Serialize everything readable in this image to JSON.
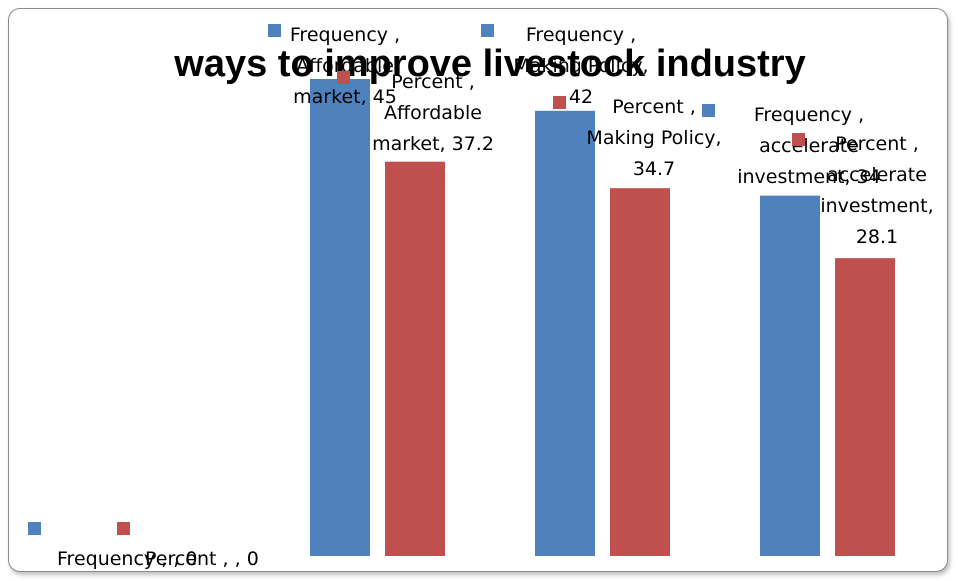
{
  "chart_data": {
    "type": "bar",
    "title": "ways to improve livestock industry",
    "categories": [
      "",
      "Affordable market",
      "Making Policy",
      "accelerate investment"
    ],
    "series": [
      {
        "name": "Frequency",
        "color": "#4f81bd",
        "values": [
          0,
          45,
          42,
          34
        ]
      },
      {
        "name": "Percent",
        "color": "#c0504d",
        "values": [
          0,
          37.2,
          34.7,
          28.1
        ]
      }
    ],
    "ylim": [
      0,
      50
    ],
    "grid": false,
    "data_labels": [
      {
        "category": 0,
        "series": 0,
        "lines": [
          "Frequency , , 0"
        ]
      },
      {
        "category": 0,
        "series": 1,
        "lines": [
          "Percent , , 0"
        ]
      },
      {
        "category": 1,
        "series": 0,
        "lines": [
          "Frequency ,",
          "Affordable",
          "market, 45"
        ]
      },
      {
        "category": 1,
        "series": 1,
        "lines": [
          "Percent ,",
          "Affordable",
          "market, 37.2"
        ]
      },
      {
        "category": 2,
        "series": 0,
        "lines": [
          "Frequency ,",
          "Making Policy,",
          "42"
        ]
      },
      {
        "category": 2,
        "series": 1,
        "lines": [
          "Percent ,",
          "Making Policy,",
          "34.7"
        ]
      },
      {
        "category": 3,
        "series": 0,
        "lines": [
          "Frequency ,",
          "accelerate",
          "investment, 34"
        ]
      },
      {
        "category": 3,
        "series": 1,
        "lines": [
          "Percent ,",
          "accelerate",
          "investment,",
          "28.1"
        ]
      }
    ]
  }
}
